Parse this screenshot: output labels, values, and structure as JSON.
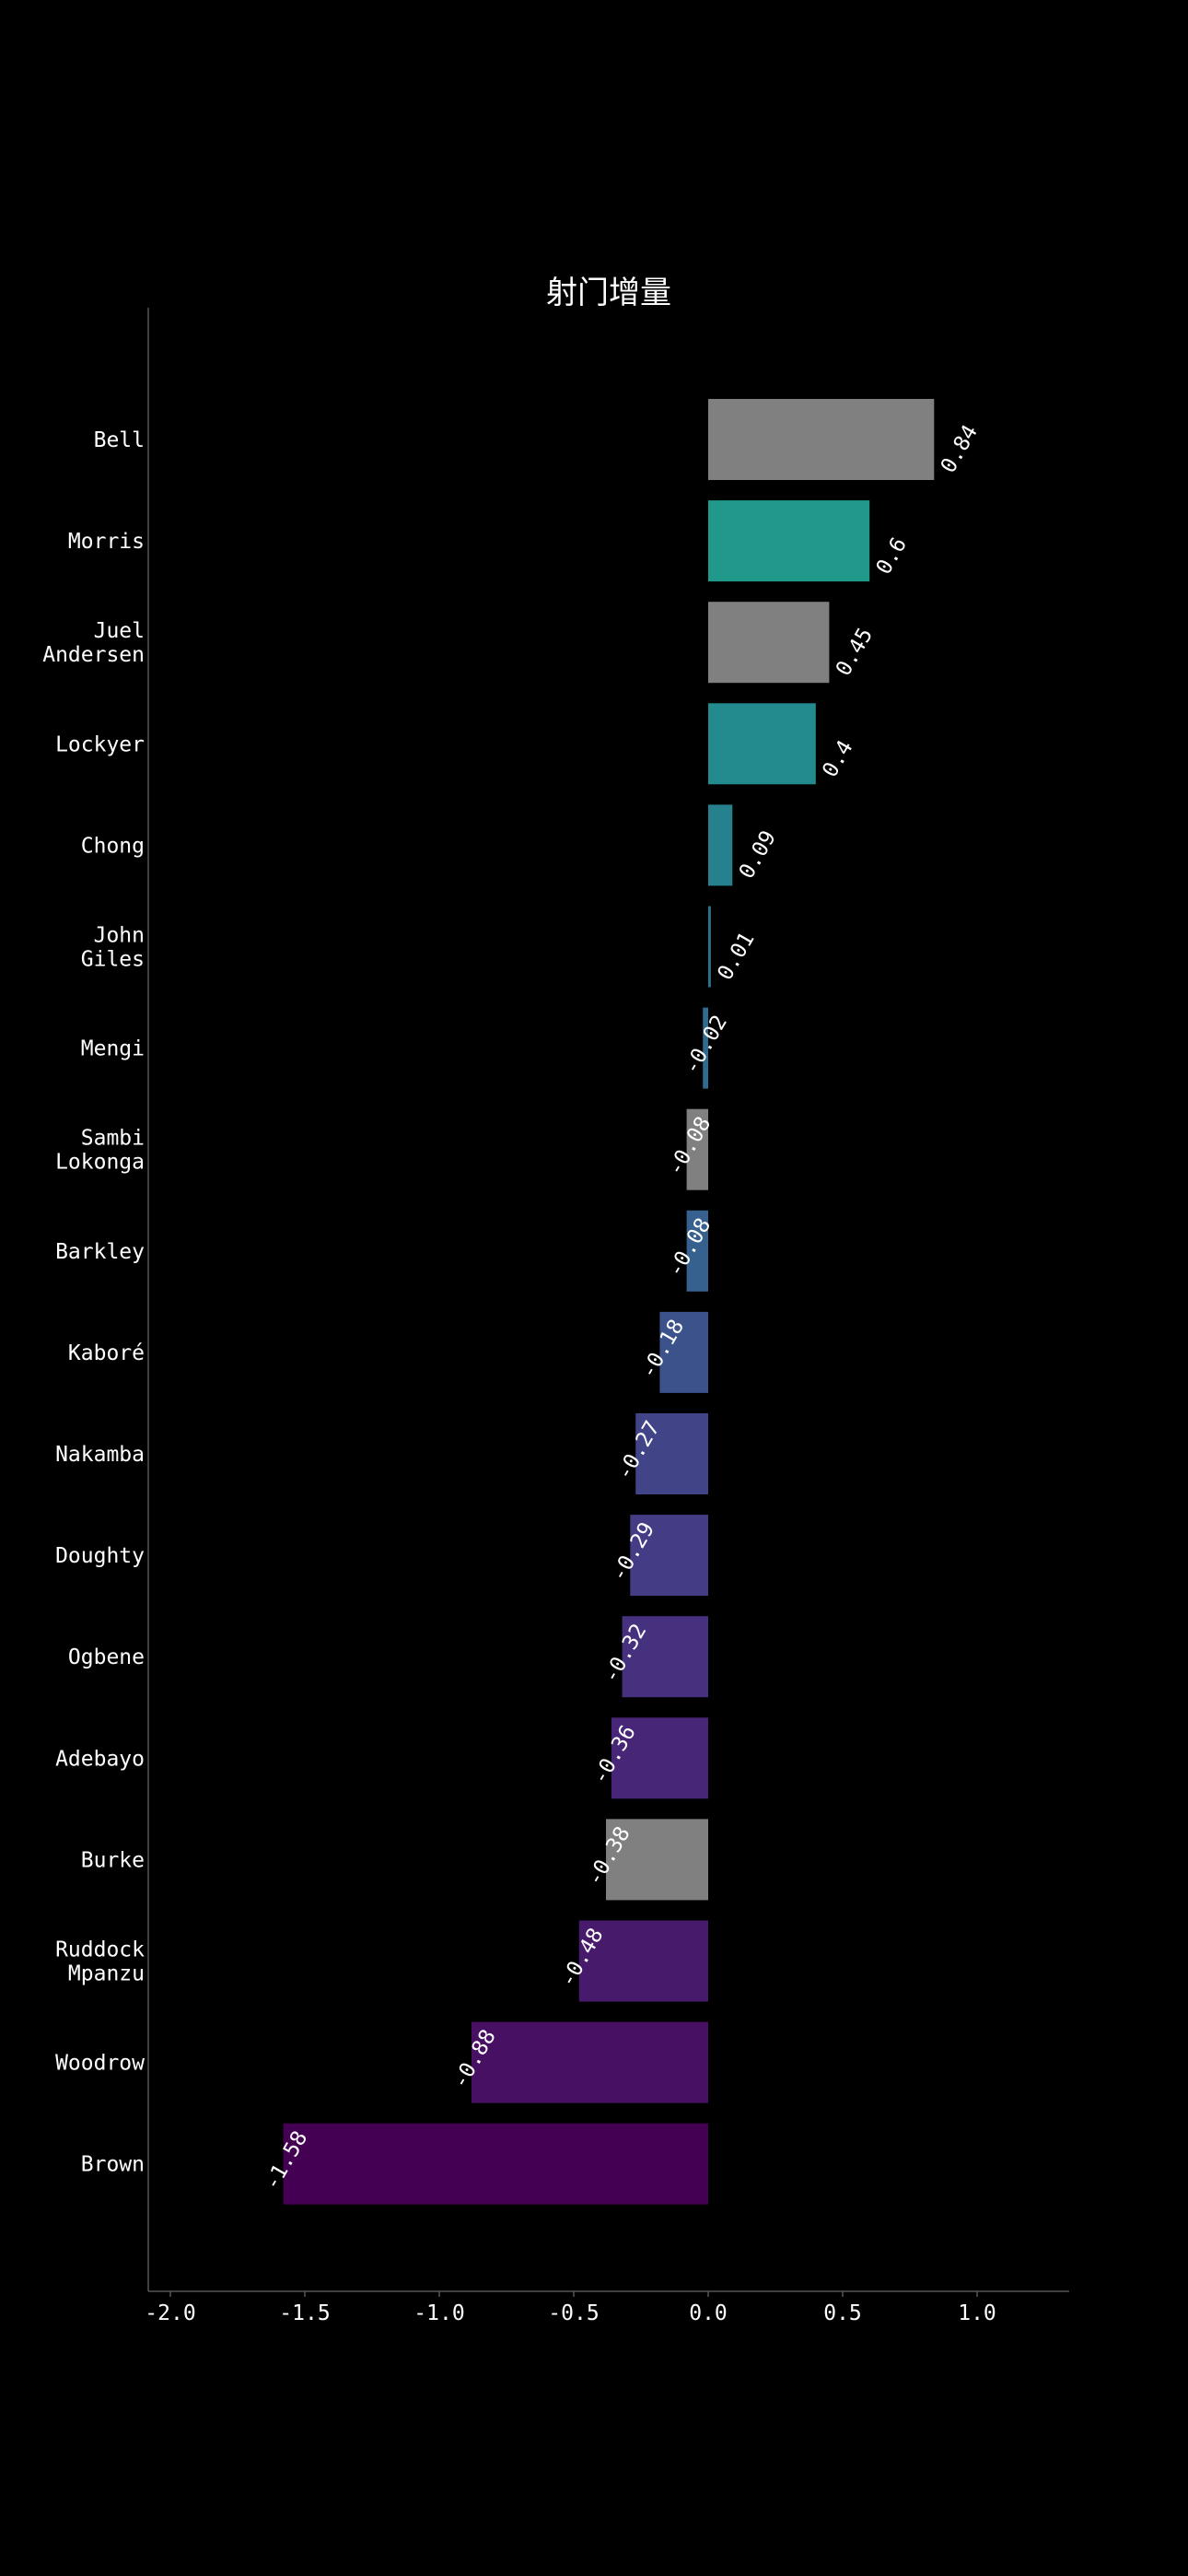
{
  "chart_data": {
    "type": "bar",
    "orientation": "horizontal",
    "title": "射门增量",
    "xlabel": "",
    "ylabel": "",
    "xlim": [
      -2.0,
      1.35
    ],
    "xticks": [
      "-2.0",
      "-1.5",
      "-1.0",
      "-0.5",
      "0.0",
      "0.5",
      "1.0"
    ],
    "xtick_values": [
      -2.0,
      -1.5,
      -1.0,
      -0.5,
      0.0,
      0.5,
      1.0
    ],
    "grid": false,
    "background": "#000000",
    "categories": [
      [
        "Bell"
      ],
      [
        "Morris"
      ],
      [
        "Juel",
        "Andersen"
      ],
      [
        "Lockyer"
      ],
      [
        "Chong"
      ],
      [
        "John",
        "Giles"
      ],
      [
        "Mengi"
      ],
      [
        "Sambi",
        "Lokonga"
      ],
      [
        "Barkley"
      ],
      [
        "Kaboré"
      ],
      [
        "Nakamba"
      ],
      [
        "Doughty"
      ],
      [
        "Ogbene"
      ],
      [
        "Adebayo"
      ],
      [
        "Burke"
      ],
      [
        "Ruddock",
        "Mpanzu"
      ],
      [
        "Woodrow"
      ],
      [
        "Brown"
      ]
    ],
    "values": [
      0.84,
      0.6,
      0.45,
      0.4,
      0.09,
      0.01,
      -0.02,
      -0.08,
      -0.08,
      -0.18,
      -0.27,
      -0.29,
      -0.32,
      -0.36,
      -0.38,
      -0.48,
      -0.88,
      -1.58
    ],
    "value_labels": [
      "0.84",
      "0.6",
      "0.45",
      "0.4",
      "0.09",
      "0.01",
      "-0.02",
      "-0.08",
      "-0.08",
      "-0.18",
      "-0.27",
      "-0.29",
      "-0.32",
      "-0.36",
      "-0.38",
      "-0.48",
      "-0.88",
      "-1.58"
    ],
    "colors": [
      "#808080",
      "#21998a",
      "#808080",
      "#238b8e",
      "#27808e",
      "#2c728e",
      "#2e6b8e",
      "#808080",
      "#36608d",
      "#3b528b",
      "#414487",
      "#443c84",
      "#46317e",
      "#482677",
      "#808080",
      "#481a6c",
      "#471063",
      "#440154"
    ]
  }
}
